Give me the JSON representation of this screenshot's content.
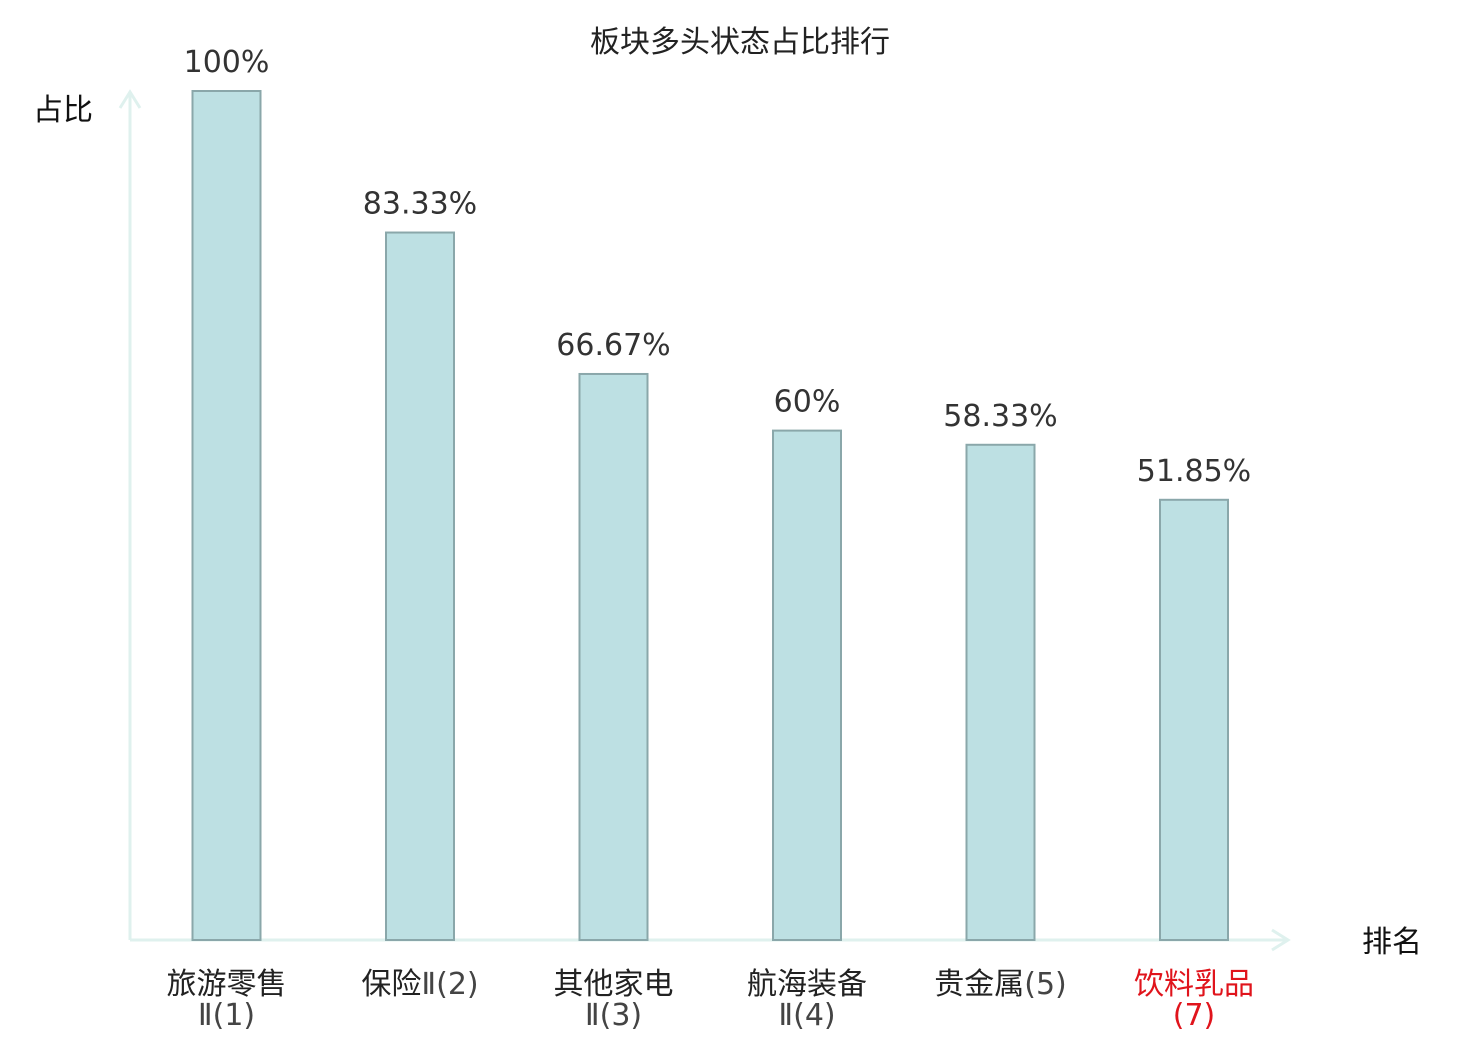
{
  "chart_data": {
    "type": "bar",
    "title": "板块多头状态占比排行",
    "xlabel": "排名",
    "ylabel": "占比",
    "ylim": [
      0,
      100
    ],
    "grid": false,
    "categories": [
      {
        "name": "旅游零售",
        "rank": "Ⅱ(1)",
        "highlight": false
      },
      {
        "name": "保险",
        "rank": "Ⅱ(2)",
        "highlight": false
      },
      {
        "name": "其他家电",
        "rank": "Ⅱ(3)",
        "highlight": false
      },
      {
        "name": "航海装备",
        "rank": "Ⅱ(4)",
        "highlight": false
      },
      {
        "name": "贵金属",
        "rank": "(5)",
        "highlight": false
      },
      {
        "name": "饮料乳品",
        "rank": "(7)",
        "highlight": true
      }
    ],
    "values": [
      100,
      83.33,
      66.67,
      60,
      58.33,
      51.85
    ],
    "value_labels": [
      "100%",
      "83.33%",
      "66.67%",
      "60%",
      "58.33%",
      "51.85%"
    ]
  },
  "colors": {
    "bar_fill": "#bde0e3",
    "bar_stroke": "#8aa7aa",
    "axis": "#dff1ee",
    "text": "#222222",
    "rank_text": "#444444",
    "highlight": "#e0141c"
  }
}
